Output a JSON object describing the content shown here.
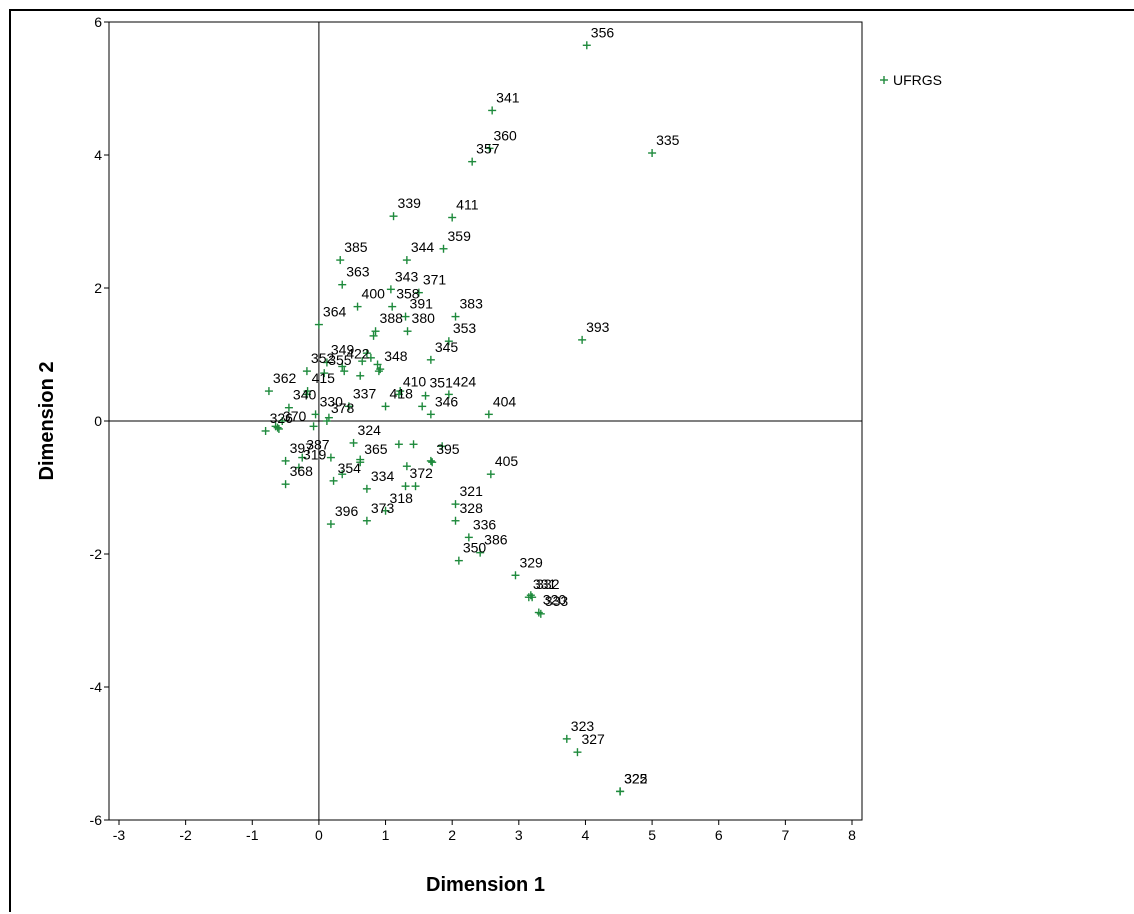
{
  "chart_data": {
    "type": "scatter",
    "title": "",
    "xlabel": "Dimension 1",
    "ylabel": "Dimension 2",
    "xlim": [
      -3.15,
      8.15
    ],
    "ylim": [
      -6,
      6
    ],
    "xticks": [
      -3,
      -2,
      -1,
      0,
      1,
      2,
      3,
      4,
      5,
      6,
      7,
      8
    ],
    "yticks": [
      -6,
      -4,
      -2,
      0,
      2,
      4,
      6
    ],
    "reference_lines": {
      "x": 0,
      "y": 0
    },
    "grid": false,
    "legend_position": "right",
    "marker": "plus",
    "color": "#1e8a3c",
    "series": [
      {
        "name": "UFRGS",
        "points": [
          {
            "label": "356",
            "x": 4.02,
            "y": 5.65
          },
          {
            "label": "341",
            "x": 2.6,
            "y": 4.67
          },
          {
            "label": "335",
            "x": 5.0,
            "y": 4.03
          },
          {
            "label": "360",
            "x": 2.56,
            "y": 4.1
          },
          {
            "label": "357",
            "x": 2.3,
            "y": 3.9
          },
          {
            "label": "339",
            "x": 1.12,
            "y": 3.08
          },
          {
            "label": "411",
            "x": 2.0,
            "y": 3.06
          },
          {
            "label": "385",
            "x": 0.32,
            "y": 2.42
          },
          {
            "label": "344",
            "x": 1.32,
            "y": 2.42
          },
          {
            "label": "359",
            "x": 1.87,
            "y": 2.59
          },
          {
            "label": "363",
            "x": 0.35,
            "y": 2.05
          },
          {
            "label": "343",
            "x": 1.08,
            "y": 1.98
          },
          {
            "label": "371",
            "x": 1.5,
            "y": 1.93
          },
          {
            "label": "400",
            "x": 0.58,
            "y": 1.72
          },
          {
            "label": "358",
            "x": 1.1,
            "y": 1.72
          },
          {
            "label": "391",
            "x": 1.3,
            "y": 1.57
          },
          {
            "label": "383",
            "x": 2.05,
            "y": 1.57
          },
          {
            "label": "364",
            "x": 0.0,
            "y": 1.45
          },
          {
            "label": "388",
            "x": 0.85,
            "y": 1.35
          },
          {
            "label": "380",
            "x": 1.33,
            "y": 1.35
          },
          {
            "label": "353",
            "x": 1.95,
            "y": 1.2
          },
          {
            "label": "393",
            "x": 3.95,
            "y": 1.22
          },
          {
            "label": "349",
            "x": 0.12,
            "y": 0.88
          },
          {
            "label": "422",
            "x": 0.35,
            "y": 0.82
          },
          {
            "label": "345",
            "x": 1.68,
            "y": 0.92
          },
          {
            "label": "352",
            "x": -0.18,
            "y": 0.75
          },
          {
            "label": "355",
            "x": 0.08,
            "y": 0.72
          },
          {
            "label": "348",
            "x": 0.92,
            "y": 0.78
          },
          {
            "label": "424",
            "x": 1.95,
            "y": 0.4
          },
          {
            "label": "362",
            "x": -0.75,
            "y": 0.45
          },
          {
            "label": "415",
            "x": -0.17,
            "y": 0.45
          },
          {
            "label": "410",
            "x": 1.2,
            "y": 0.4
          },
          {
            "label": "351",
            "x": 1.6,
            "y": 0.38
          },
          {
            "label": "340",
            "x": -0.45,
            "y": 0.2
          },
          {
            "label": "330",
            "x": -0.05,
            "y": 0.1
          },
          {
            "label": "337",
            "x": 0.45,
            "y": 0.22
          },
          {
            "label": "418",
            "x": 1.0,
            "y": 0.22
          },
          {
            "label": "404",
            "x": 2.55,
            "y": 0.1
          },
          {
            "label": "326",
            "x": -0.8,
            "y": -0.15
          },
          {
            "label": "370",
            "x": -0.6,
            "y": -0.12
          },
          {
            "label": "378",
            "x": 0.12,
            "y": 0.0
          },
          {
            "label": "346",
            "x": 1.68,
            "y": 0.1
          },
          {
            "label": "387",
            "x": -0.25,
            "y": -0.55
          },
          {
            "label": "324",
            "x": 0.52,
            "y": -0.33
          },
          {
            "label": "405",
            "x": 2.58,
            "y": -0.8
          },
          {
            "label": "397",
            "x": -0.5,
            "y": -0.6
          },
          {
            "label": "319",
            "x": -0.3,
            "y": -0.7
          },
          {
            "label": "365",
            "x": 0.62,
            "y": -0.62
          },
          {
            "label": "395",
            "x": 1.7,
            "y": -0.62
          },
          {
            "label": "368",
            "x": -0.5,
            "y": -0.95
          },
          {
            "label": "354",
            "x": 0.22,
            "y": -0.9
          },
          {
            "label": "334",
            "x": 0.72,
            "y": -1.02
          },
          {
            "label": "372",
            "x": 1.3,
            "y": -0.98
          },
          {
            "label": "321",
            "x": 2.05,
            "y": -1.25
          },
          {
            "label": "318",
            "x": 1.0,
            "y": -1.35
          },
          {
            "label": "328",
            "x": 2.05,
            "y": -1.5
          },
          {
            "label": "336",
            "x": 2.25,
            "y": -1.75
          },
          {
            "label": "396",
            "x": 0.18,
            "y": -1.55
          },
          {
            "label": "373",
            "x": 0.72,
            "y": -1.5
          },
          {
            "label": "350",
            "x": 2.1,
            "y": -2.1
          },
          {
            "label": "329",
            "x": 2.95,
            "y": -2.32
          },
          {
            "label": "386",
            "x": 2.42,
            "y": -1.98
          },
          {
            "label": "332",
            "x": 3.2,
            "y": -2.65
          },
          {
            "label": "331",
            "x": 3.15,
            "y": -2.65
          },
          {
            "label": "320",
            "x": 3.3,
            "y": -2.88
          },
          {
            "label": "333",
            "x": 3.33,
            "y": -2.9
          },
          {
            "label": "323",
            "x": 3.72,
            "y": -4.78
          },
          {
            "label": "327",
            "x": 3.88,
            "y": -4.98
          },
          {
            "label": "322",
            "x": 4.52,
            "y": -5.57
          },
          {
            "label": "325",
            "x": 4.52,
            "y": -5.57
          },
          {
            "label": "",
            "x": 0.72,
            "y": 1.02
          },
          {
            "label": "",
            "x": 0.78,
            "y": 0.95
          },
          {
            "label": "",
            "x": 0.65,
            "y": 0.9
          },
          {
            "label": "",
            "x": 0.62,
            "y": 0.68
          },
          {
            "label": "",
            "x": 0.88,
            "y": 0.85
          },
          {
            "label": "",
            "x": 0.9,
            "y": 0.75
          },
          {
            "label": "",
            "x": 0.82,
            "y": 1.28
          },
          {
            "label": "",
            "x": 0.38,
            "y": 0.75
          },
          {
            "label": "",
            "x": 1.22,
            "y": 0.45
          },
          {
            "label": "",
            "x": 1.55,
            "y": 0.22
          },
          {
            "label": "",
            "x": -0.18,
            "y": 0.4
          },
          {
            "label": "",
            "x": -0.62,
            "y": -0.1
          },
          {
            "label": "",
            "x": -0.55,
            "y": 0.0
          },
          {
            "label": "",
            "x": -0.65,
            "y": -0.08
          },
          {
            "label": "",
            "x": 0.15,
            "y": 0.05
          },
          {
            "label": "",
            "x": -0.08,
            "y": -0.08
          },
          {
            "label": "",
            "x": 0.18,
            "y": -0.55
          },
          {
            "label": "",
            "x": 0.35,
            "y": -0.8
          },
          {
            "label": "",
            "x": 1.2,
            "y": -0.35
          },
          {
            "label": "",
            "x": 1.42,
            "y": -0.35
          },
          {
            "label": "",
            "x": 1.85,
            "y": -0.38
          },
          {
            "label": "",
            "x": 1.32,
            "y": -0.68
          },
          {
            "label": "",
            "x": 1.68,
            "y": -0.6
          },
          {
            "label": "",
            "x": 1.45,
            "y": -0.98
          },
          {
            "label": "",
            "x": 0.62,
            "y": -0.58
          },
          {
            "label": "",
            "x": 3.18,
            "y": -2.62
          }
        ]
      }
    ]
  }
}
